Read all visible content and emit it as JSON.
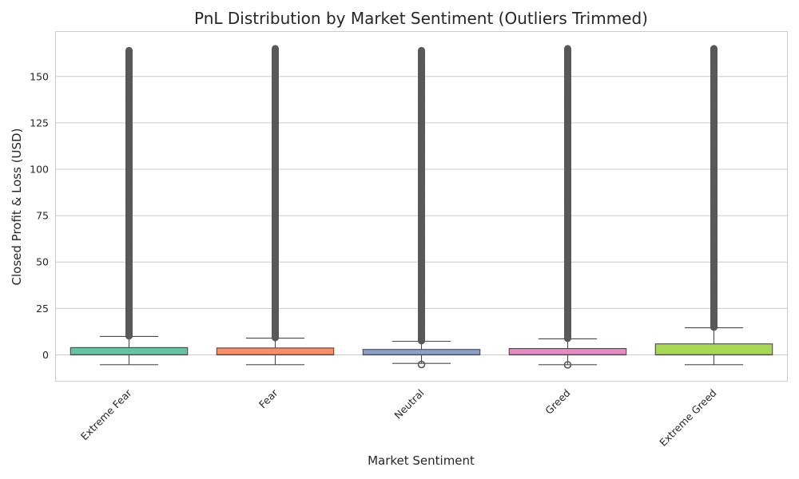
{
  "chart_data": {
    "type": "box",
    "title": "PnL Distribution by Market Sentiment (Outliers Trimmed)",
    "xlabel": "Market Sentiment",
    "ylabel": "Closed Profit & Loss (USD)",
    "ylim": [
      -14,
      174
    ],
    "yticks": [
      0,
      25,
      50,
      75,
      100,
      125,
      150
    ],
    "grid": "horizontal",
    "categories": [
      "Extreme Fear",
      "Fear",
      "Neutral",
      "Greed",
      "Extreme Greed"
    ],
    "colors": [
      "#66c2a5",
      "#fc8d62",
      "#8da0cb",
      "#e78ac3",
      "#a6d854"
    ],
    "outlier_color": "#595959",
    "box_edge_color": "#4a4a4a",
    "boxes": [
      {
        "category": "Extreme Fear",
        "whisker_low": -5.3,
        "q1": 0,
        "median": 0,
        "q3": 3.9,
        "whisker_high": 9.9,
        "outlier_low": null,
        "outlier_high_min": 10.2,
        "outlier_high_max": 164,
        "outlier_top_density": "sparse"
      },
      {
        "category": "Fear",
        "whisker_low": -5.3,
        "q1": 0,
        "median": 0,
        "q3": 3.7,
        "whisker_high": 9.0,
        "outlier_low": null,
        "outlier_high_min": 9.3,
        "outlier_high_max": 165,
        "outlier_top_density": "dense"
      },
      {
        "category": "Neutral",
        "whisker_low": -4.6,
        "q1": 0,
        "median": 0,
        "q3": 2.9,
        "whisker_high": 7.3,
        "outlier_low": -5.2,
        "outlier_high_min": 7.6,
        "outlier_high_max": 164,
        "outlier_top_density": "sparse"
      },
      {
        "category": "Greed",
        "whisker_low": -5.3,
        "q1": 0,
        "median": 0,
        "q3": 3.4,
        "whisker_high": 8.6,
        "outlier_low": -5.4,
        "outlier_high_min": 8.9,
        "outlier_high_max": 165,
        "outlier_top_density": "dense"
      },
      {
        "category": "Extreme Greed",
        "whisker_low": -5.3,
        "q1": 0,
        "median": 0,
        "q3": 5.9,
        "whisker_high": 14.6,
        "outlier_low": null,
        "outlier_high_min": 14.9,
        "outlier_high_max": 165,
        "outlier_top_density": "dense"
      }
    ]
  }
}
